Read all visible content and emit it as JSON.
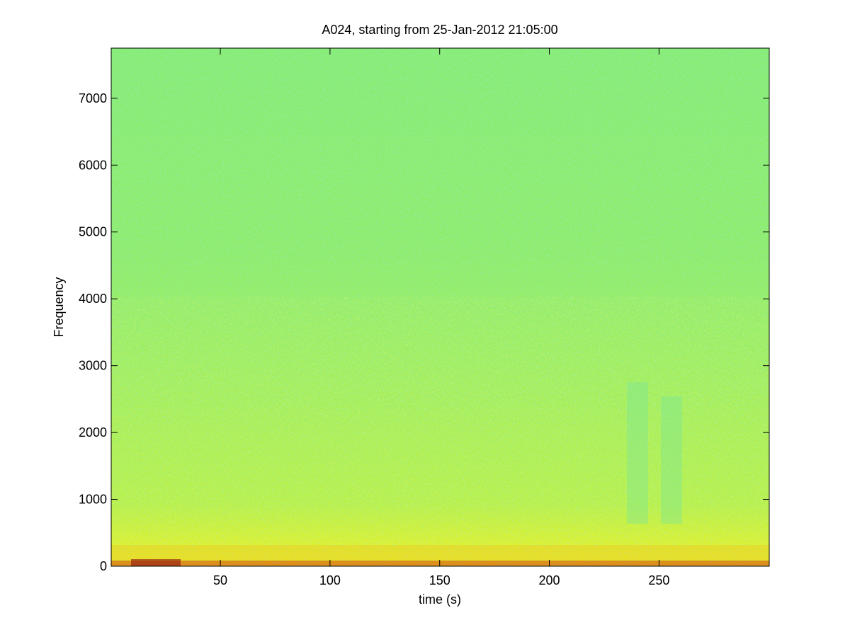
{
  "chart_data": {
    "type": "spectrogram",
    "title": "A024, starting from 25-Jan-2012 21:05:00",
    "xlabel": "time (s)",
    "ylabel": "Frequency",
    "xlim": [
      0.25,
      300.25
    ],
    "xticks": [
      50,
      100,
      150,
      200,
      250
    ],
    "ylim": [
      0,
      7750
    ],
    "yticks": [
      0,
      1000,
      2000,
      3000,
      4000,
      5000,
      6000,
      7000
    ]
  }
}
